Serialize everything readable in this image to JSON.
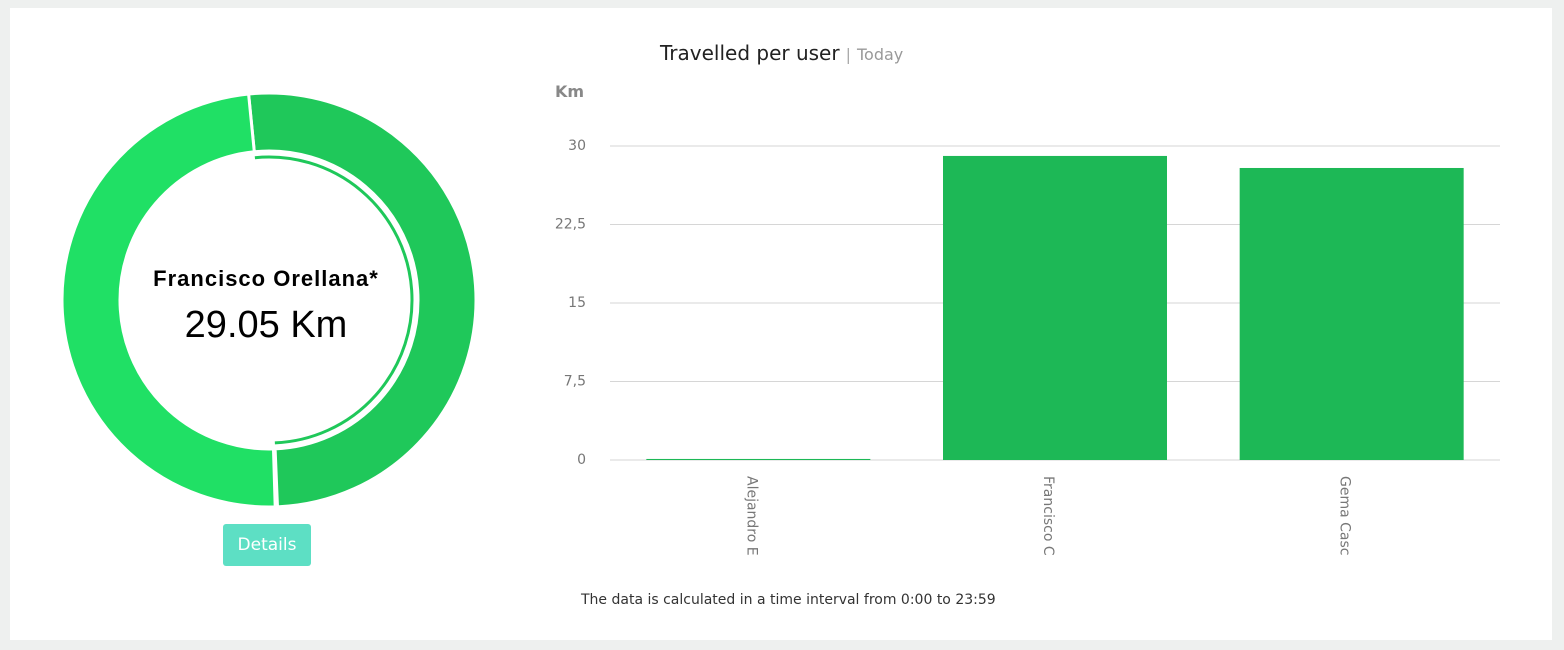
{
  "chart_data": [
    {
      "type": "donut",
      "center_title": "Francisco Orellana*",
      "center_label": "29.05 Km",
      "values": [
        0.1,
        29.05,
        27.9
      ],
      "colors": [
        "#22d463",
        "#1fc85a",
        "#20e065"
      ],
      "highlight": 1
    },
    {
      "type": "bar",
      "title": "Travelled per user",
      "subtitle": "Today",
      "y_label": "Km",
      "categories": [
        "Alejandro E",
        "Francisco C",
        "Gema Casc"
      ],
      "values": [
        0.1,
        29.05,
        27.9
      ],
      "color": "#1db856",
      "ylim": [
        0,
        30
      ],
      "yticks": [
        0,
        {
          "value": 7.5,
          "label": "7,5"
        },
        15,
        {
          "value": 22.5,
          "label": "22,5"
        },
        30
      ],
      "grid": true
    }
  ],
  "button": "Details",
  "footnote": "The data is calculated in a time interval from 0:00 to 23:59"
}
